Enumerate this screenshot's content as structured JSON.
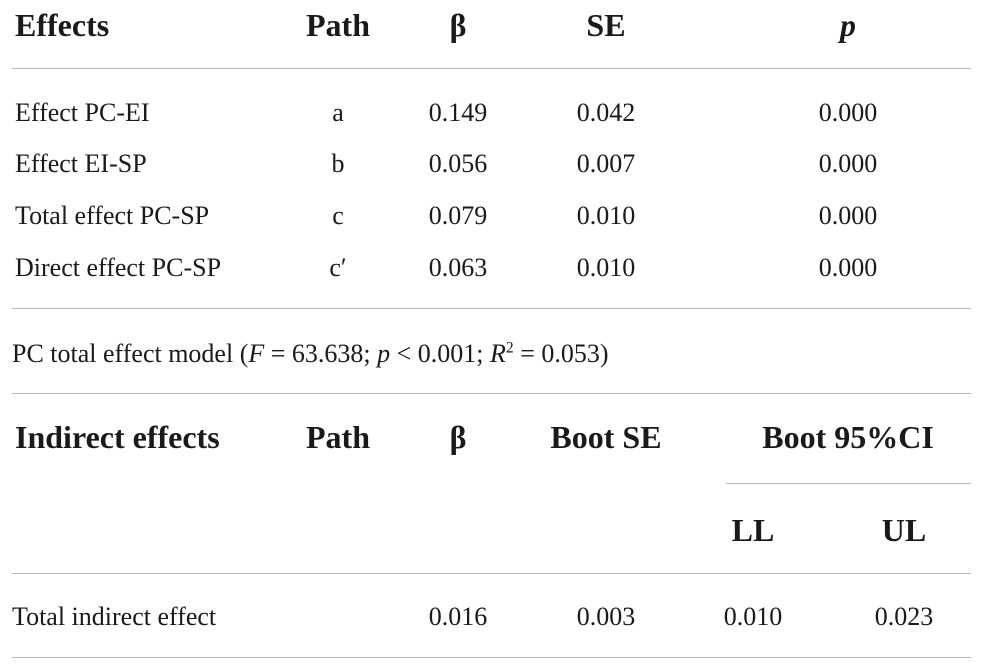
{
  "table1": {
    "headers": {
      "effects": "Effects",
      "path": "Path",
      "beta": "β",
      "se": "SE",
      "p": "p"
    },
    "rows": [
      {
        "effect": "Effect PC-EI",
        "path": "a",
        "beta": "0.149",
        "se": "0.042",
        "p": "0.000"
      },
      {
        "effect": "Effect EI-SP",
        "path": "b",
        "beta": "0.056",
        "se": "0.007",
        "p": "0.000"
      },
      {
        "effect": "Total effect PC-SP",
        "path": "c",
        "beta": "0.079",
        "se": "0.010",
        "p": "0.000"
      },
      {
        "effect": "Direct effect PC-SP",
        "path": "c′",
        "beta": "0.063",
        "se": "0.010",
        "p": "0.000"
      }
    ]
  },
  "model_note": {
    "prefix": "PC total effect model (",
    "f_var": "F",
    "f_value": " = 63.638; ",
    "p_var": "p",
    "p_value": " < 0.001; ",
    "r_var": "R",
    "r_sup": "2",
    "r_value": " = 0.053)"
  },
  "table2": {
    "headers": {
      "indirect_effects": "Indirect effects",
      "path": "Path",
      "beta": "β",
      "boot_se": "Boot SE",
      "boot_ci": "Boot 95%CI",
      "ll": "LL",
      "ul": "UL"
    },
    "rows": [
      {
        "effect": "Total indirect effect",
        "path": "",
        "beta": "0.016",
        "boot_se": "0.003",
        "ll": "0.010",
        "ul": "0.023"
      }
    ]
  }
}
